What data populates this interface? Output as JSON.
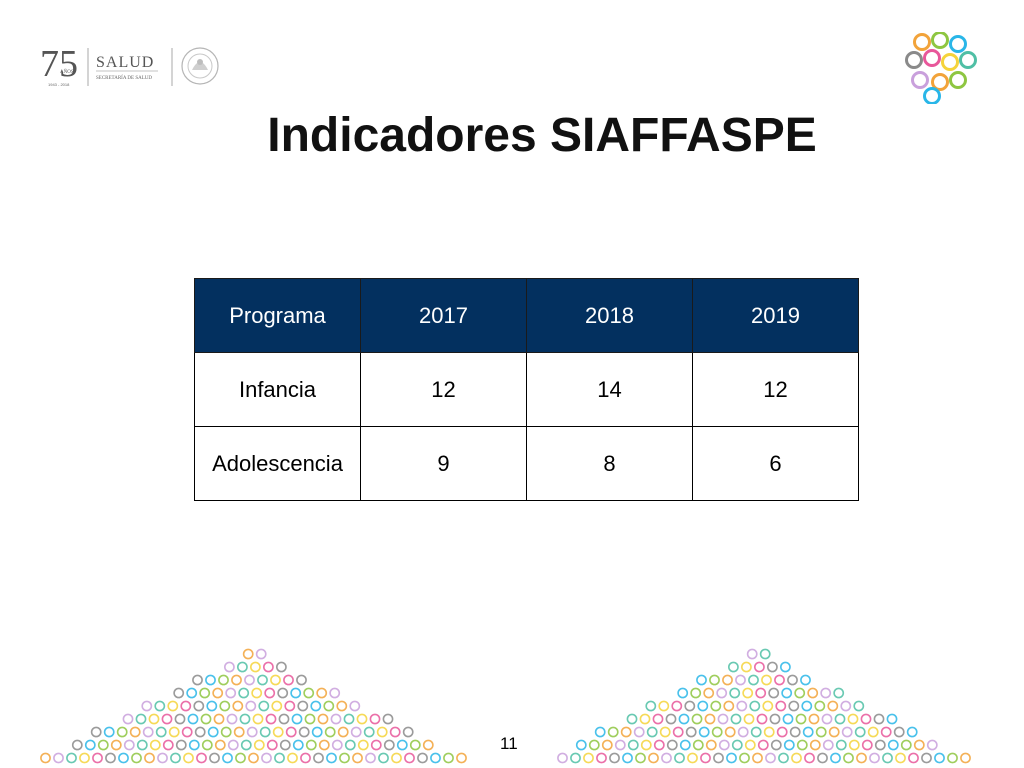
{
  "logo": {
    "number": "75",
    "anos": "AÑOS",
    "years": "1943 - 2018",
    "salud": "SALUD",
    "secretaria": "SECRETARÍA DE SALUD"
  },
  "title": "Indicadores SIAFFASPE",
  "table": {
    "headers": [
      "Programa",
      "2017",
      "2018",
      "2019"
    ],
    "rows": [
      [
        "Infancia",
        "12",
        "14",
        "12"
      ],
      [
        "Adolescencia",
        "9",
        "8",
        "6"
      ]
    ]
  },
  "footer": {
    "page_number": "11"
  },
  "colors": {
    "header_bg": "#03305f",
    "ring_palette": [
      "#f2a33a",
      "#8ec641",
      "#29b6e8",
      "#8a8a8a",
      "#e8579a",
      "#f5d33b",
      "#4fbfa5",
      "#c9a0dc"
    ]
  },
  "icons": {
    "logo_left": "salud-75-anos-logo",
    "logo_right": "colored-rings-icon",
    "decoration": "ring-pattern"
  }
}
